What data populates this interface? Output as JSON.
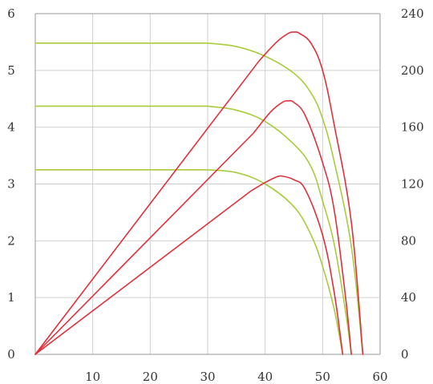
{
  "chart_data": {
    "type": "line",
    "title": "",
    "xlabel": "",
    "ylabel": "",
    "y2label": "",
    "grid": true,
    "legend": "none",
    "xlim": [
      0,
      60
    ],
    "ylim": [
      0,
      6
    ],
    "y2lim": [
      0,
      240
    ],
    "x_ticks": [
      "10",
      "20",
      "30",
      "40",
      "50",
      "60"
    ],
    "x_tick_values": [
      10,
      20,
      30,
      40,
      50,
      60
    ],
    "y_ticks": [
      "0",
      "1",
      "2",
      "3",
      "4",
      "5",
      "6"
    ],
    "y_tick_values": [
      0,
      1,
      2,
      3,
      4,
      5,
      6
    ],
    "y2_ticks": [
      "0",
      "40",
      "80",
      "120",
      "160",
      "200",
      "240"
    ],
    "y2_tick_values": [
      0,
      40,
      80,
      120,
      160,
      200,
      240
    ],
    "colors": {
      "current": "#a8cc3c",
      "power": "#e0303a"
    },
    "series": [
      {
        "kind": "current",
        "axis": "left",
        "x": [
          0,
          30,
          35,
          40,
          45,
          48,
          50,
          52,
          53.5
        ],
        "y": [
          3.25,
          3.25,
          3.2,
          3.0,
          2.6,
          2.1,
          1.55,
          0.8,
          0
        ]
      },
      {
        "kind": "current",
        "axis": "left",
        "x": [
          0,
          30,
          35,
          40,
          45,
          48,
          50,
          52,
          54,
          55
        ],
        "y": [
          4.37,
          4.37,
          4.3,
          4.1,
          3.7,
          3.3,
          2.7,
          1.95,
          0.75,
          0
        ]
      },
      {
        "kind": "current",
        "axis": "left",
        "x": [
          0,
          30,
          35,
          40,
          45,
          48,
          50,
          52,
          55,
          57
        ],
        "y": [
          5.48,
          5.48,
          5.42,
          5.25,
          4.95,
          4.6,
          4.15,
          3.4,
          1.9,
          0
        ]
      },
      {
        "kind": "power",
        "axis": "right",
        "x": [
          0,
          37.5,
          40,
          42,
          43,
          45,
          47,
          50,
          52,
          53.5
        ],
        "y": [
          0,
          115,
          121,
          125,
          125.5,
          123,
          116,
          84,
          44,
          0
        ]
      },
      {
        "kind": "power",
        "axis": "right",
        "x": [
          0,
          38,
          41,
          43,
          44,
          45,
          47,
          50,
          52,
          54,
          55
        ],
        "y": [
          0,
          156,
          171,
          177.5,
          178.5,
          177.5,
          168,
          135,
          102,
          40,
          0
        ]
      },
      {
        "kind": "power",
        "axis": "right",
        "x": [
          0,
          39,
          42,
          44,
          45,
          46,
          48,
          50,
          52,
          55,
          57
        ],
        "y": [
          0,
          207,
          220,
          226,
          227,
          226,
          219,
          200,
          162,
          93,
          0
        ]
      }
    ]
  }
}
